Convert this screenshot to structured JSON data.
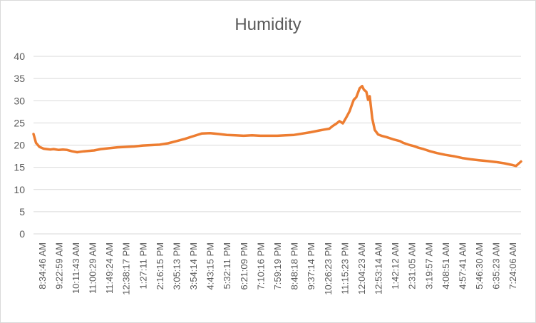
{
  "chart_data": {
    "type": "line",
    "title": "Humidity",
    "xlabel": "",
    "ylabel": "",
    "ylim": [
      0,
      40
    ],
    "yticks": [
      0,
      5,
      10,
      15,
      20,
      25,
      30,
      35,
      40
    ],
    "grid": true,
    "legend": "none",
    "series_color": "#ED7D31",
    "categories": [
      "8:34:46 AM",
      "9:22:59 AM",
      "10:11:43 AM",
      "11:00:29 AM",
      "11:49:24 AM",
      "12:38:17 PM",
      "1:27:11 PM",
      "2:16:15 PM",
      "3:05:13 PM",
      "3:54:14 PM",
      "4:43:15 PM",
      "5:32:11 PM",
      "6:21:09 PM",
      "7:10:16 PM",
      "7:59:19 PM",
      "8:48:18 PM",
      "9:37:14 PM",
      "10:26:23 PM",
      "11:15:23 PM",
      "12:04:23 AM",
      "12:53:14 AM",
      "1:42:12 AM",
      "2:31:05 AM",
      "3:19:57 AM",
      "4:08:51 AM",
      "4:57:41 AM",
      "5:46:30 AM",
      "6:35:23 AM",
      "7:24:06 AM"
    ],
    "series": [
      {
        "x": [
          0,
          0.15,
          0.35,
          0.6,
          0.8,
          1,
          1.2,
          1.5,
          1.75,
          2,
          2.3,
          2.6,
          2.8,
          3,
          3.3,
          3.6,
          4,
          4.5,
          5,
          5.5,
          6,
          6.5,
          7,
          7.5,
          8,
          8.5,
          9,
          9.5,
          10,
          10.5,
          11,
          11.5,
          12,
          12.5,
          13,
          13.5,
          14,
          14.5,
          15,
          15.5,
          16,
          16.5,
          17,
          17.3,
          17.6,
          17.8,
          18,
          18.2,
          18.4,
          18.6,
          18.8,
          18.95,
          19.05,
          19.2,
          19.4,
          19.55,
          19.65,
          19.8,
          19.9,
          20,
          20.15,
          20.3,
          20.5,
          20.7,
          21,
          21.4,
          21.8,
          22,
          22.3,
          22.6,
          22.9,
          23.2,
          23.6,
          24,
          24.5,
          25,
          25.5,
          26,
          26.5,
          27,
          27.5,
          28,
          28.5,
          28.7,
          29
        ],
        "y": [
          22.5,
          20.5,
          19.6,
          19.2,
          19.1,
          19,
          19.1,
          18.9,
          19,
          18.9,
          18.6,
          18.4,
          18.5,
          18.6,
          18.7,
          18.8,
          19.1,
          19.3,
          19.5,
          19.6,
          19.7,
          19.9,
          20,
          20.1,
          20.4,
          20.9,
          21.4,
          22,
          22.6,
          22.7,
          22.5,
          22.3,
          22.2,
          22.1,
          22.2,
          22.1,
          22.1,
          22.1,
          22.2,
          22.3,
          22.6,
          22.9,
          23.3,
          23.5,
          23.7,
          24.3,
          24.8,
          25.4,
          24.9,
          26.2,
          27.6,
          29.2,
          30.2,
          30.8,
          32.8,
          33.3,
          32.5,
          32,
          30.2,
          31,
          26,
          23.4,
          22.4,
          22.1,
          21.8,
          21.3,
          20.9,
          20.5,
          20.1,
          19.8,
          19.4,
          19.1,
          18.6,
          18.2,
          17.8,
          17.5,
          17.1,
          16.8,
          16.6,
          16.4,
          16.2,
          15.9,
          15.5,
          15.3,
          16.3
        ]
      }
    ]
  }
}
